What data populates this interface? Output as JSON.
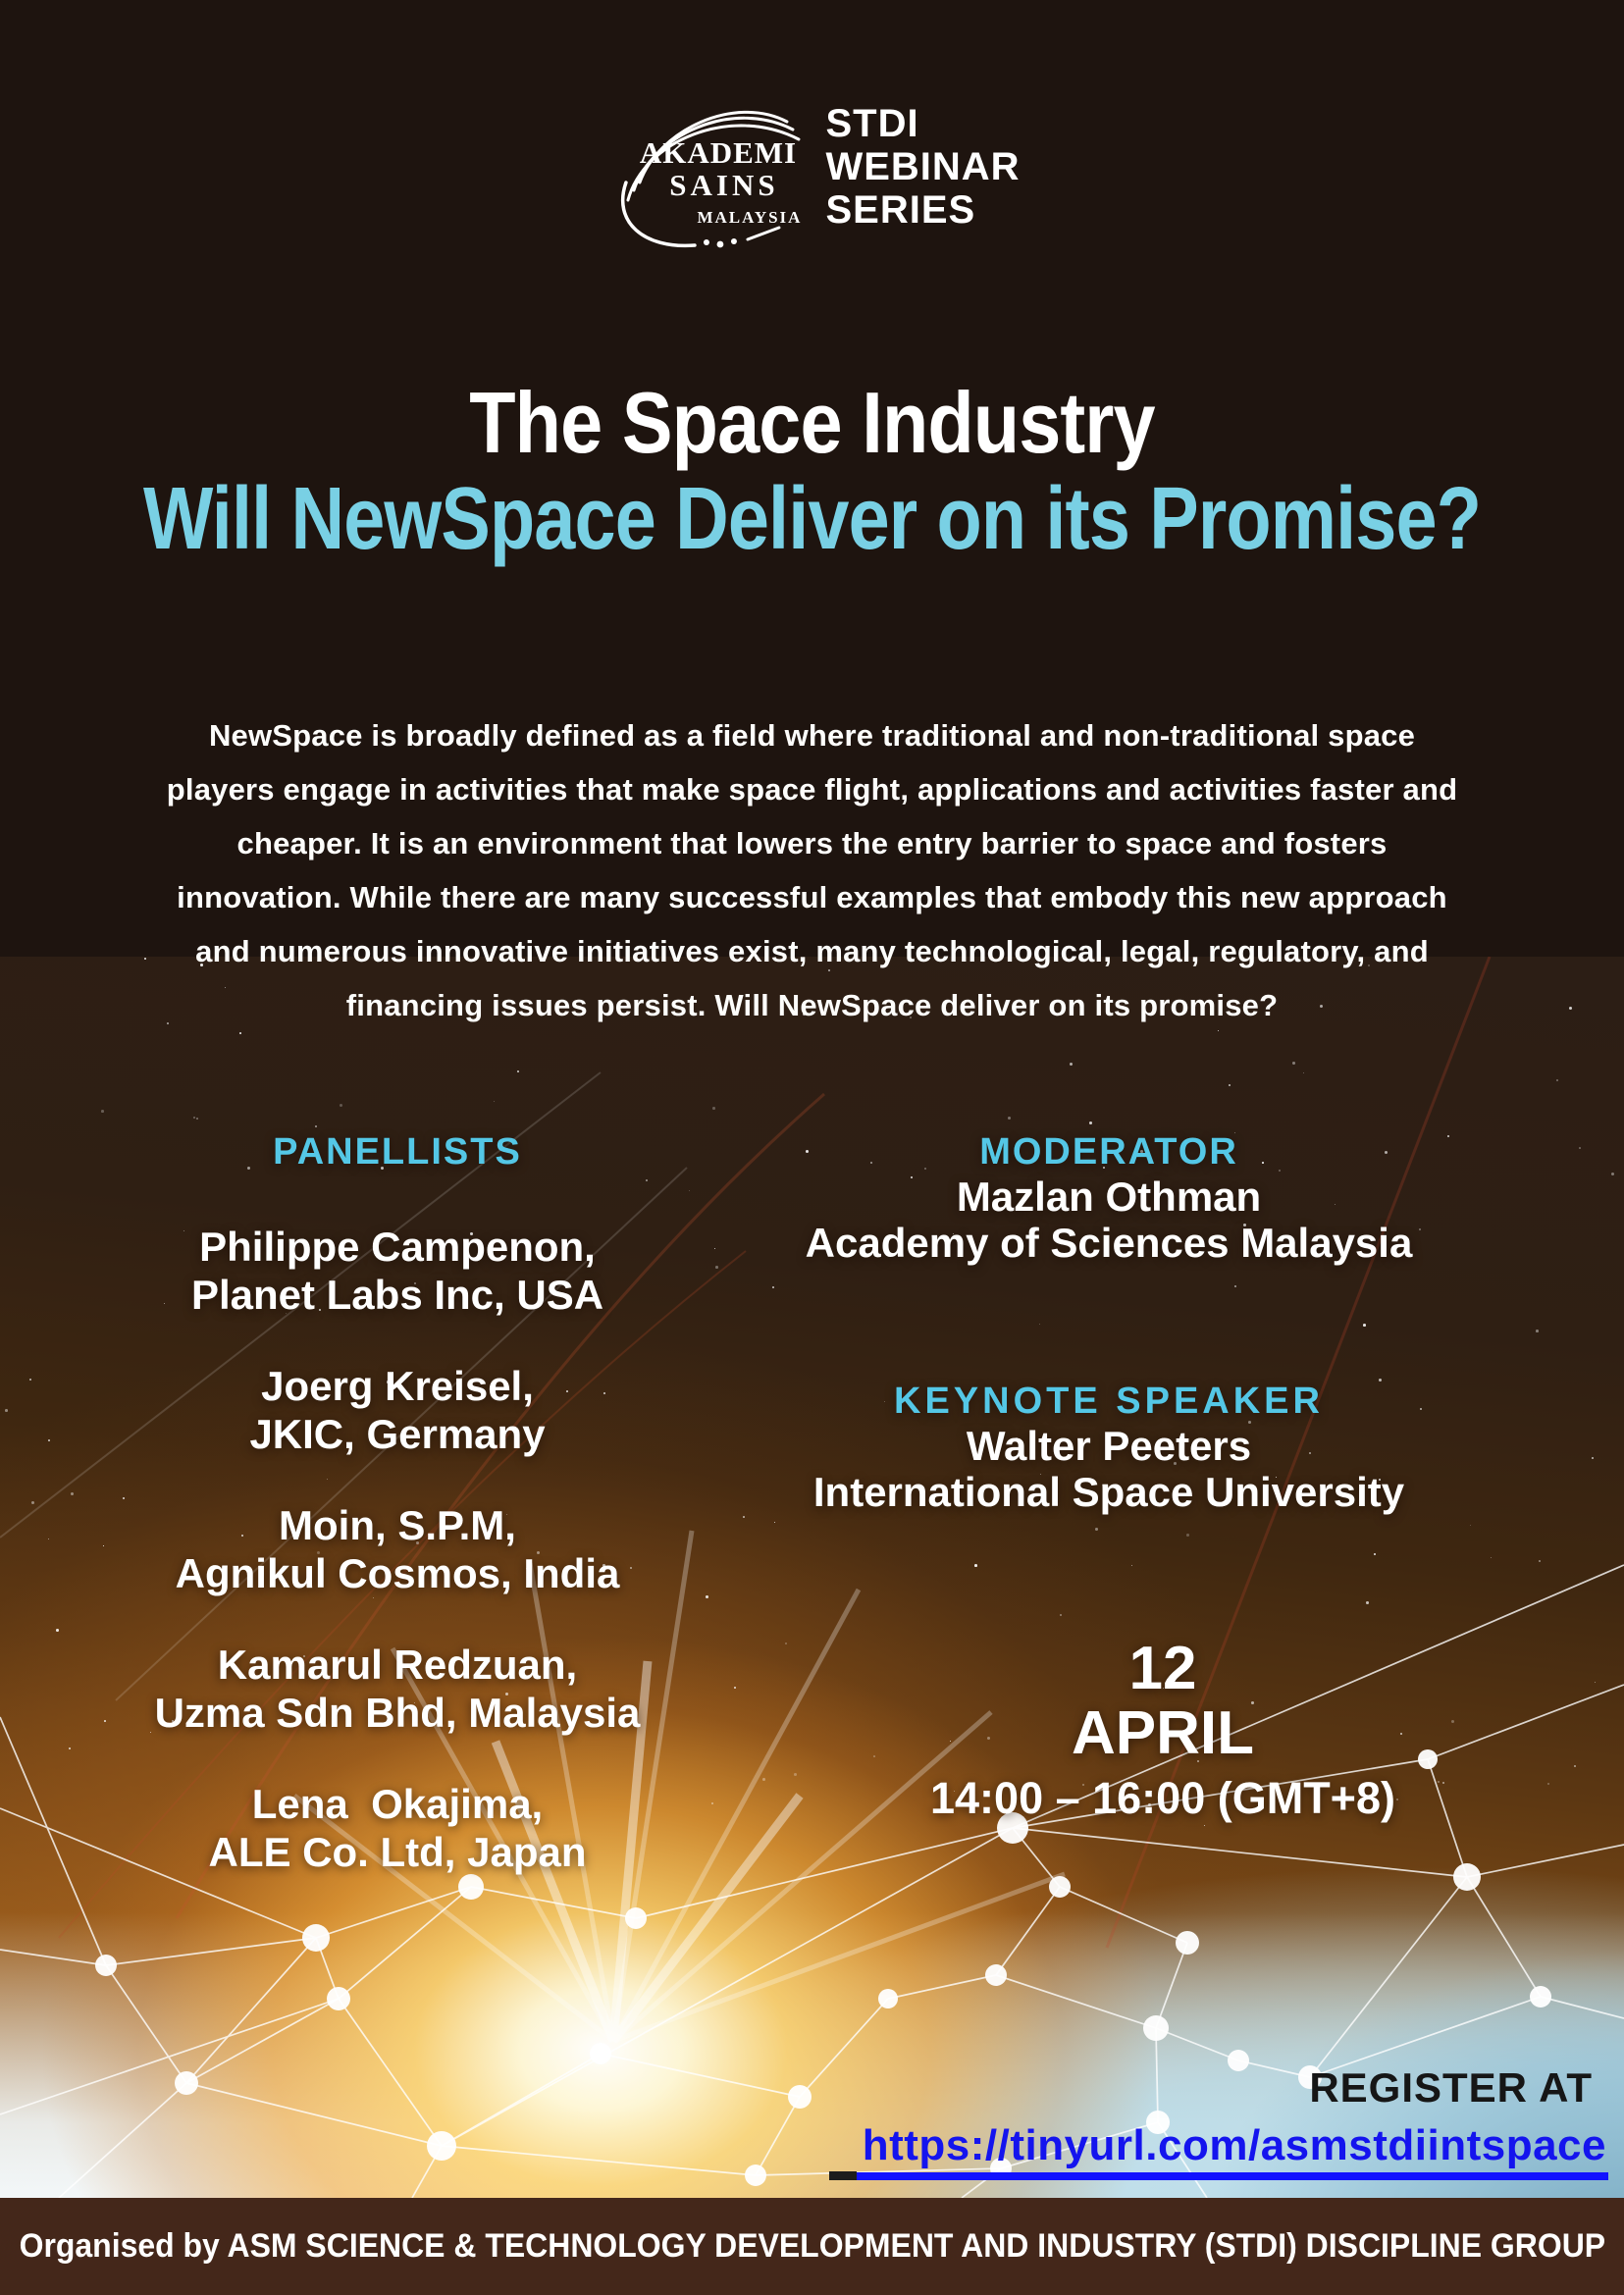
{
  "brand": {
    "logo": {
      "line1": "AKADEMI",
      "line2": "SAINS",
      "line3": "MALAYSIA"
    },
    "series": [
      "STDI",
      "WEBINAR",
      "SERIES"
    ]
  },
  "title": "The Space Industry",
  "subtitle": "Will NewSpace Deliver on its Promise?",
  "description_lines": [
    "NewSpace is broadly defined as a field where traditional and non-traditional space",
    "players engage in activities that make space flight, applications and activities faster and",
    "cheaper. It is an environment that lowers the entry barrier to space and fosters",
    "innovation. While there are many successful examples that embody this new approach",
    "and numerous innovative initiatives exist, many technological, legal, regulatory, and",
    "financing issues persist. Will NewSpace deliver on its promise?"
  ],
  "panellists": {
    "heading": "PANELLISTS",
    "items": [
      {
        "name": "Philippe Campenon,",
        "affiliation": "Planet Labs Inc, USA"
      },
      {
        "name": "Joerg Kreisel,",
        "affiliation": "JKIC, Germany"
      },
      {
        "name": "Moin, S.P.M,",
        "affiliation": "Agnikul Cosmos, India"
      },
      {
        "name": "Kamarul Redzuan,",
        "affiliation": "Uzma Sdn Bhd, Malaysia"
      },
      {
        "name": "Lena  Okajima,",
        "affiliation": "ALE Co. Ltd, Japan"
      }
    ]
  },
  "moderator": {
    "heading": "MODERATOR",
    "name": "Mazlan Othman",
    "affiliation": "Academy of Sciences Malaysia"
  },
  "keynote": {
    "heading": "KEYNOTE SPEAKER",
    "name": "Walter Peeters",
    "affiliation": "International Space University"
  },
  "schedule": {
    "day": "12",
    "month": "APRIL",
    "time": "14:00 – 16:00 (GMT+8)"
  },
  "registration": {
    "label": "REGISTER AT",
    "url": "https://tinyurl.com/asmstdiintspace"
  },
  "footer": "Organised by ASM SCIENCE & TECHNOLOGY DEVELOPMENT AND INDUSTRY (STDI) DISCIPLINE GROUP",
  "colors": {
    "accent_blue": "#54c7e6",
    "subtitle_blue": "#79d0e4",
    "link_blue": "#1414ee",
    "footer_bg": "#44271a",
    "background_dark": "#1e140f"
  }
}
